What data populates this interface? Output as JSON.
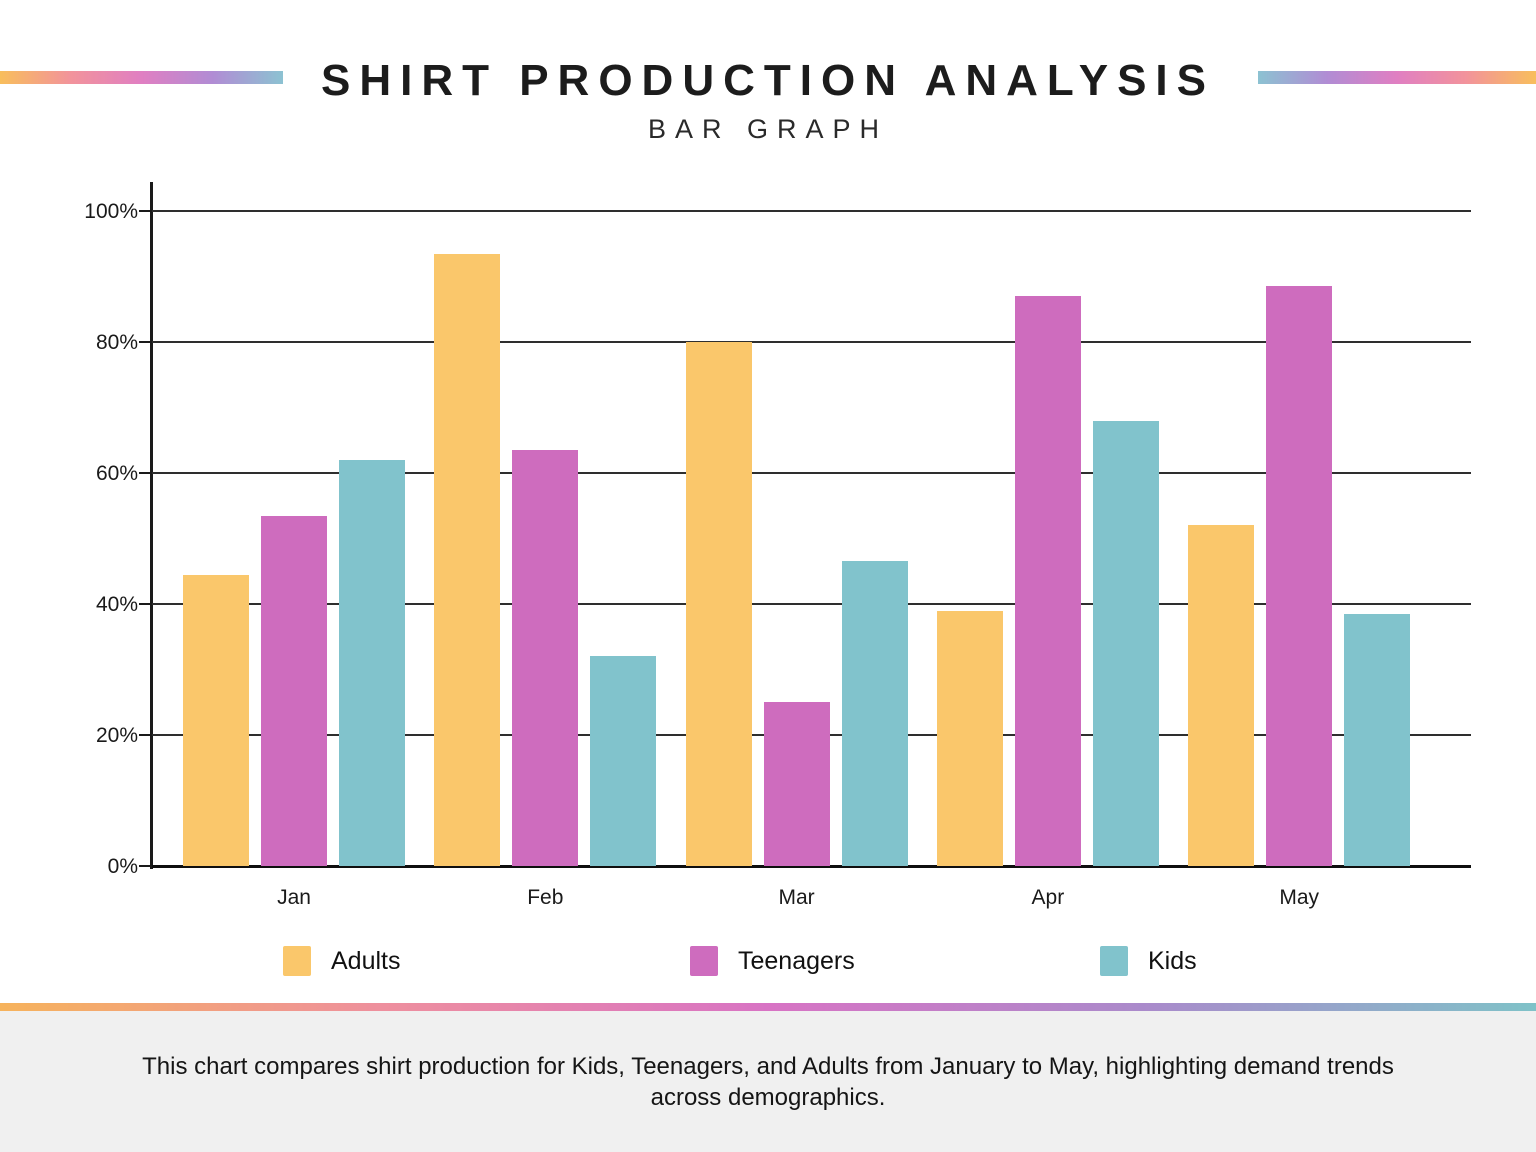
{
  "header": {
    "title": "SHIRT PRODUCTION ANALYSIS",
    "subtitle": "BAR GRAPH"
  },
  "chart_data": {
    "type": "bar",
    "title": "SHIRT PRODUCTION ANALYSIS",
    "subtitle": "BAR GRAPH",
    "categories": [
      "Jan",
      "Feb",
      "Mar",
      "Apr",
      "May"
    ],
    "series": [
      {
        "name": "Adults",
        "color": "#FAC76B",
        "values": [
          44.5,
          93.5,
          80.0,
          39.0,
          52.0
        ]
      },
      {
        "name": "Teenagers",
        "color": "#CE6CBE",
        "values": [
          53.5,
          63.5,
          25.0,
          87.0,
          88.5
        ]
      },
      {
        "name": "Kids",
        "color": "#81C3CC",
        "values": [
          62.0,
          32.0,
          46.5,
          68.0,
          38.5
        ]
      }
    ],
    "ylim": [
      0,
      100
    ],
    "yticks": [
      "0%",
      "20%",
      "40%",
      "60%",
      "80%",
      "100%"
    ],
    "grid": true,
    "legend_position": "bottom"
  },
  "footer": {
    "description": "This chart compares shirt production for Kids, Teenagers, and Adults from January to May, highlighting demand trends across demographics."
  },
  "colors": {
    "adults": "#FAC76B",
    "teenagers": "#CE6CBE",
    "kids": "#81C3CC",
    "gridline": "#2E2E2E",
    "axis": "#1A1A1A",
    "footer_bg": "#F0F0F0",
    "gradient_left": [
      "#F8BE5C",
      "#F2939B",
      "#E07FC2",
      "#B18CD4",
      "#8CC2D2"
    ],
    "gradient_right": [
      "#8CC2D2",
      "#B18CD4",
      "#E07FC2",
      "#F2939B",
      "#F8BE5C"
    ],
    "separator": [
      "#F6B35C",
      "#EE8F9E",
      "#D873C4",
      "#A98BCB",
      "#7FC2C8"
    ]
  }
}
